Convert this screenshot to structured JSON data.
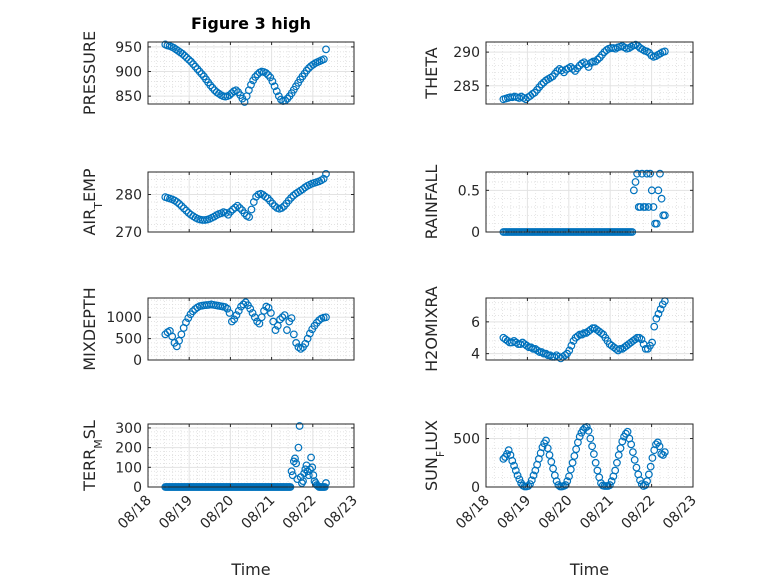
{
  "figure": {
    "title": "Figure 3 high",
    "marker_color": "#0072BD",
    "grid": true,
    "minor_grid": true
  },
  "chart_data": [
    {
      "type": "scatter",
      "title": "Figure 3 high",
      "ylabel": "PRESSURE",
      "xlim": [
        18,
        23
      ],
      "ylim": [
        834,
        960
      ],
      "ytick_labels": [
        "850",
        "900",
        "950"
      ],
      "y": [
        955,
        953,
        952,
        950,
        948,
        945,
        942,
        939,
        936,
        932,
        928,
        924,
        920,
        915,
        910,
        905,
        900,
        895,
        890,
        884,
        878,
        872,
        867,
        862,
        858,
        855,
        852,
        850,
        849,
        850,
        852,
        856,
        860,
        862,
        858,
        852,
        845,
        838,
        850,
        862,
        873,
        882,
        889,
        894,
        898,
        900,
        899,
        897,
        893,
        888,
        880,
        870,
        860,
        850,
        843,
        840,
        841,
        845,
        850,
        856,
        863,
        870,
        877,
        884,
        890,
        896,
        902,
        907,
        911,
        914,
        917,
        919,
        921,
        923,
        925,
        945
      ]
    },
    {
      "type": "scatter",
      "ylabel": "THETA",
      "xlim": [
        18,
        23
      ],
      "ylim": [
        282.3,
        291.5
      ],
      "ytick_labels": [
        "285",
        "290"
      ],
      "y": [
        283.0,
        283.1,
        283.2,
        283.3,
        283.3,
        283.4,
        283.3,
        283.2,
        283.4,
        283.2,
        283.0,
        283.3,
        283.5,
        283.8,
        284.0,
        284.4,
        284.8,
        285.2,
        285.5,
        285.8,
        286.0,
        286.2,
        286.4,
        286.8,
        287.2,
        287.5,
        287.3,
        287.0,
        287.4,
        287.6,
        287.8,
        287.5,
        287.2,
        287.6,
        288.0,
        288.3,
        288.5,
        288.2,
        287.8,
        288.4,
        288.6,
        288.6,
        288.9,
        289.2,
        289.6,
        290.0,
        290.3,
        290.5,
        290.6,
        290.6,
        290.5,
        290.7,
        290.8,
        290.9,
        290.7,
        290.5,
        290.6,
        290.8,
        291.0,
        291.1,
        290.9,
        290.6,
        290.4,
        290.2,
        290.1,
        289.9,
        289.5,
        289.3,
        289.4,
        289.6,
        289.8,
        290.0,
        290.1
      ]
    },
    {
      "type": "scatter",
      "ylabel_main": "AIR",
      "ylabel_sub": "T",
      "ylabel_tail": "EMP",
      "xlim": [
        18,
        23
      ],
      "ylim": [
        270,
        286
      ],
      "ytick_labels": [
        "270",
        "280"
      ],
      "y": [
        279.3,
        279.1,
        278.9,
        278.7,
        278.4,
        278.0,
        277.5,
        276.9,
        276.3,
        275.7,
        275.1,
        274.6,
        274.2,
        273.8,
        273.5,
        273.3,
        273.2,
        273.2,
        273.3,
        273.5,
        273.8,
        274.1,
        274.5,
        274.8,
        275.0,
        275.3,
        275.1,
        274.6,
        275.4,
        276.0,
        276.5,
        277.0,
        276.4,
        275.8,
        275.0,
        274.3,
        274.0,
        276.0,
        278.0,
        279.4,
        280.0,
        280.2,
        279.9,
        279.4,
        279.0,
        278.3,
        277.6,
        276.9,
        276.4,
        276.2,
        276.4,
        276.9,
        277.6,
        278.4,
        279.1,
        279.7,
        280.2,
        280.6,
        281.0,
        281.4,
        281.9,
        282.3,
        282.6,
        282.9,
        283.1,
        283.3,
        283.5,
        283.8,
        284.2,
        285.5
      ]
    },
    {
      "type": "scatter",
      "ylabel": "RAINFALL",
      "xlim": [
        18,
        23
      ],
      "ylim": [
        0,
        0.72
      ],
      "ytick_labels": [
        "0",
        "0.5"
      ],
      "y": [
        0,
        0,
        0,
        0,
        0,
        0,
        0,
        0,
        0,
        0,
        0,
        0,
        0,
        0,
        0,
        0,
        0,
        0,
        0,
        0,
        0,
        0,
        0,
        0,
        0,
        0,
        0,
        0,
        0,
        0,
        0,
        0,
        0,
        0,
        0,
        0,
        0,
        0,
        0,
        0,
        0,
        0,
        0,
        0,
        0,
        0,
        0,
        0,
        0,
        0,
        0,
        0,
        0,
        0,
        0,
        0,
        0,
        0,
        0,
        0,
        0,
        0,
        0,
        0,
        0,
        0,
        0,
        0,
        0,
        0,
        0,
        0,
        0,
        0,
        0,
        0,
        0,
        0,
        0,
        0,
        0.5,
        0.6,
        0.7,
        0.3,
        0.3,
        0.7,
        0.3,
        0.3,
        0.7,
        0.3,
        0.7,
        0.5,
        0.3,
        0.1,
        0.1,
        0.5,
        0.7,
        0.4,
        0.2,
        0.2
      ]
    },
    {
      "type": "scatter",
      "ylabel": "MIXDEPTH",
      "xlim": [
        18,
        23
      ],
      "ylim": [
        0,
        1450
      ],
      "ytick_labels": [
        "0",
        "500",
        "1000"
      ],
      "y": [
        600,
        650,
        680,
        550,
        400,
        320,
        450,
        600,
        750,
        880,
        980,
        1070,
        1140,
        1190,
        1230,
        1260,
        1270,
        1280,
        1285,
        1290,
        1300,
        1290,
        1280,
        1270,
        1260,
        1250,
        1240,
        1200,
        1100,
        900,
        950,
        1050,
        1150,
        1250,
        1300,
        1350,
        1280,
        1200,
        1100,
        1000,
        900,
        850,
        1000,
        1150,
        1250,
        1220,
        1100,
        900,
        700,
        800,
        950,
        1000,
        1050,
        700,
        900,
        980,
        600,
        400,
        300,
        260,
        300,
        380,
        500,
        620,
        720,
        800,
        870,
        930,
        970,
        990,
        1000
      ]
    },
    {
      "type": "scatter",
      "ylabel": "H2OMIXRA",
      "xlim": [
        18,
        23
      ],
      "ylim": [
        3.6,
        7.5
      ],
      "ytick_labels": [
        "4",
        "6"
      ],
      "y": [
        5.0,
        4.9,
        4.8,
        4.7,
        4.7,
        4.8,
        4.7,
        4.6,
        4.6,
        4.7,
        4.6,
        4.5,
        4.4,
        4.4,
        4.3,
        4.3,
        4.2,
        4.1,
        4.1,
        4.0,
        4.0,
        3.9,
        3.9,
        3.8,
        3.8,
        3.9,
        3.8,
        3.7,
        3.8,
        3.9,
        4.0,
        4.2,
        4.5,
        4.8,
        5.0,
        5.1,
        5.2,
        5.2,
        5.3,
        5.3,
        5.4,
        5.5,
        5.6,
        5.6,
        5.5,
        5.4,
        5.3,
        5.2,
        5.0,
        4.8,
        4.6,
        4.5,
        4.4,
        4.3,
        4.2,
        4.3,
        4.3,
        4.4,
        4.5,
        4.6,
        4.7,
        4.8,
        4.9,
        5.0,
        5.0,
        4.9,
        4.6,
        4.3,
        4.3,
        4.5,
        4.7,
        5.7,
        6.2,
        6.5,
        6.8,
        7.1,
        7.3
      ]
    },
    {
      "type": "scatter",
      "ylabel_main": "TERR",
      "ylabel_sub": "M",
      "ylabel_tail": "SL",
      "xlim": [
        18,
        23
      ],
      "ylim": [
        0,
        320
      ],
      "ytick_labels": [
        "0",
        "100",
        "200",
        "300"
      ],
      "y": [
        0,
        0,
        0,
        0,
        0,
        0,
        0,
        0,
        0,
        0,
        0,
        0,
        0,
        0,
        0,
        0,
        0,
        0,
        0,
        0,
        0,
        0,
        0,
        0,
        0,
        0,
        0,
        0,
        0,
        0,
        0,
        0,
        0,
        0,
        0,
        0,
        0,
        0,
        0,
        0,
        0,
        0,
        0,
        0,
        0,
        0,
        0,
        0,
        0,
        0,
        0,
        0,
        0,
        0,
        0,
        0,
        0,
        0,
        0,
        0,
        0,
        0,
        0,
        0,
        0,
        0,
        0,
        0,
        0,
        0,
        0,
        0,
        0,
        0,
        0,
        0,
        0,
        0,
        0,
        0,
        0,
        0,
        0,
        0,
        0,
        0,
        0,
        0,
        0,
        0,
        0,
        0,
        0,
        0,
        0,
        0,
        0,
        0,
        0,
        0,
        0,
        0,
        0,
        0,
        0,
        0,
        0,
        0,
        0,
        0,
        80,
        60,
        130,
        145,
        120,
        40,
        200,
        310,
        50,
        20,
        30,
        70,
        90,
        110,
        80,
        60,
        90,
        150,
        100,
        60,
        30,
        20,
        10,
        5,
        0,
        0,
        0,
        0,
        0,
        0,
        20
      ]
    },
    {
      "type": "scatter",
      "ylabel_main": "SUN",
      "ylabel_sub": "F",
      "ylabel_tail": "LUX",
      "xlim": [
        18,
        23
      ],
      "ylim": [
        0,
        650
      ],
      "ytick_labels": [
        "0",
        "500"
      ],
      "y": [
        290,
        310,
        340,
        380,
        330,
        270,
        220,
        170,
        120,
        80,
        40,
        15,
        5,
        5,
        10,
        30,
        70,
        120,
        170,
        230,
        290,
        350,
        410,
        450,
        480,
        400,
        330,
        260,
        190,
        120,
        60,
        20,
        5,
        5,
        10,
        20,
        60,
        110,
        180,
        250,
        320,
        390,
        460,
        520,
        560,
        590,
        610,
        620,
        580,
        500,
        420,
        340,
        250,
        170,
        100,
        40,
        15,
        10,
        10,
        10,
        20,
        60,
        110,
        170,
        250,
        330,
        400,
        470,
        520,
        550,
        570,
        500,
        440,
        360,
        280,
        200,
        130,
        70,
        30,
        10,
        20,
        60,
        130,
        210,
        300,
        380,
        440,
        460,
        420,
        340,
        330,
        360
      ]
    }
  ],
  "x_axis": {
    "tick_labels": [
      "08/18",
      "08/19",
      "08/20",
      "08/21",
      "08/22",
      "08/23"
    ],
    "label": "Time"
  }
}
